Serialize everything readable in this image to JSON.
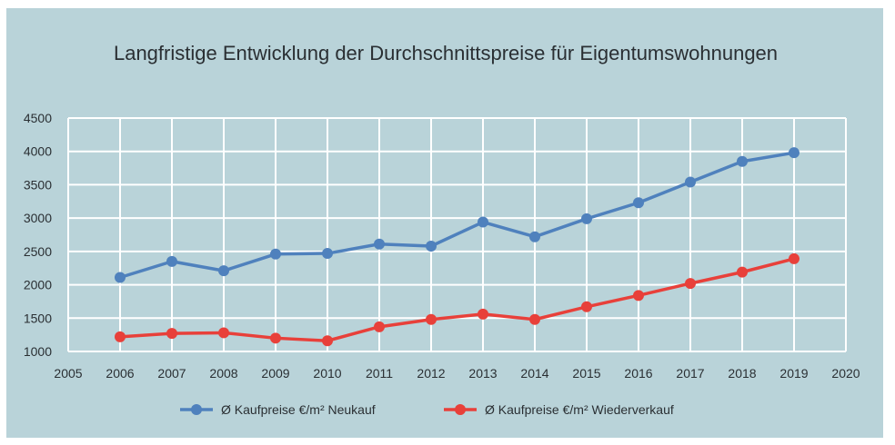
{
  "chart_data": {
    "type": "line",
    "title": "Langfristige Entwicklung der Durchschnittspreise für Eigentumswohnungen",
    "xlabel": "",
    "ylabel": "",
    "x": [
      2006,
      2007,
      2008,
      2009,
      2010,
      2011,
      2012,
      2013,
      2014,
      2015,
      2016,
      2017,
      2018,
      2019
    ],
    "xlim": [
      2005,
      2020
    ],
    "ylim": [
      1000,
      4500
    ],
    "xticks": [
      "2005",
      "2006",
      "2007",
      "2008",
      "2009",
      "2010",
      "2011",
      "2012",
      "2013",
      "2014",
      "2015",
      "2016",
      "2017",
      "2018",
      "2019",
      "2020"
    ],
    "yticks": [
      "4500",
      "4000",
      "3500",
      "3000",
      "2500",
      "2000",
      "1500",
      "1000"
    ],
    "grid": true,
    "legend_position": "bottom",
    "series": [
      {
        "name": "Ø Kaufpreise €/m² Neukauf",
        "color": "#4f81bd",
        "values": [
          2110,
          2350,
          2210,
          2460,
          2470,
          2610,
          2580,
          2940,
          2720,
          2990,
          3230,
          3540,
          3850,
          3980
        ]
      },
      {
        "name": "Ø Kaufpreise €/m² Wiederverkauf",
        "color": "#e8403a",
        "values": [
          1220,
          1270,
          1280,
          1200,
          1160,
          1370,
          1480,
          1560,
          1480,
          1670,
          1840,
          2020,
          2190,
          2390
        ]
      }
    ]
  },
  "colors": {
    "panel_background": "#b9d3d9",
    "grid": "#ffffff",
    "text": "#2a2f33"
  }
}
